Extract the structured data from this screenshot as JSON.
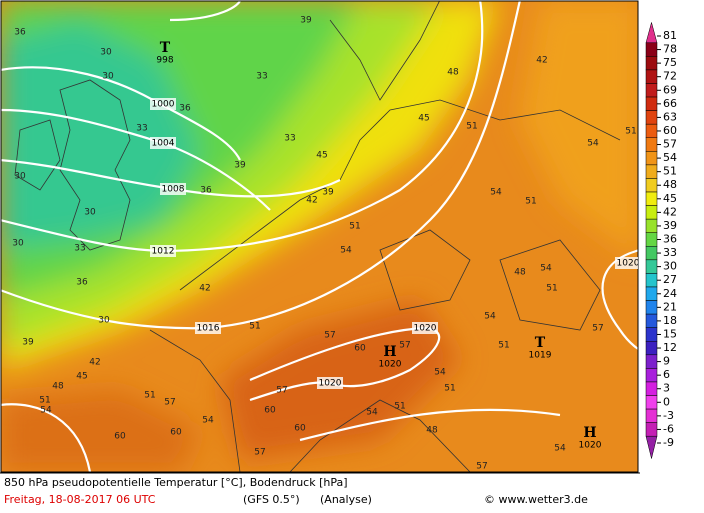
{
  "map": {
    "contour_labels": [
      36,
      30,
      30,
      39,
      33,
      36,
      33,
      33,
      39,
      45,
      36,
      30,
      30,
      30,
      33,
      39,
      42,
      51,
      54,
      42,
      36,
      30,
      39,
      42,
      45,
      48,
      51,
      54,
      51,
      57,
      60,
      60,
      57,
      60,
      57,
      51,
      54,
      60,
      57,
      60,
      57,
      54,
      51,
      54,
      51,
      48,
      54,
      51,
      54,
      51,
      57,
      54,
      57,
      45,
      48,
      51,
      54,
      51,
      48,
      42,
      54,
      51
    ],
    "isobar_labels": [
      1000,
      1004,
      1008,
      1012,
      1016,
      1020,
      1020,
      1020
    ],
    "pressure_centers": [
      {
        "symbol": "T",
        "value": 998
      },
      {
        "symbol": "H",
        "value": 1020
      },
      {
        "symbol": "T",
        "value": 1019
      },
      {
        "symbol": "H",
        "value": 1020
      }
    ]
  },
  "legend": {
    "ticks": [
      81,
      78,
      75,
      72,
      69,
      66,
      63,
      60,
      57,
      54,
      51,
      48,
      45,
      42,
      39,
      36,
      33,
      30,
      27,
      24,
      21,
      18,
      15,
      12,
      9,
      6,
      3,
      0,
      -3,
      -6,
      -9
    ],
    "colors": [
      "#e0308c",
      "#8a0018",
      "#9c0c10",
      "#b01414",
      "#c01c1c",
      "#d02c10",
      "#e04410",
      "#ec5c10",
      "#f07a12",
      "#f09418",
      "#f0ac1c",
      "#f0cc20",
      "#f0ec10",
      "#c8ee10",
      "#98e22c",
      "#64d644",
      "#44c862",
      "#34c898",
      "#24c4cc",
      "#20a8ec",
      "#2084ec",
      "#2458dc",
      "#2c34cc",
      "#3c20c0",
      "#7c20cc",
      "#a820dc",
      "#d420e0",
      "#f040ec",
      "#e430d4",
      "#c420b4",
      "#9420a4"
    ]
  },
  "footer": {
    "description": "850 hPa pseudopotentielle Temperatur [°C], Bodendruck [hPa]",
    "date": "Freitag, 18-08-2017  06 UTC",
    "model": "(GFS 0.5°)",
    "analysis": "(Analyse)",
    "credit": "© www.wetter3.de"
  }
}
